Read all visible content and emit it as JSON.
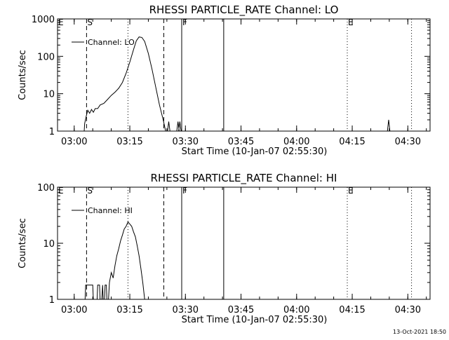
{
  "colors": {
    "background": "#ffffff",
    "foreground": "#000000"
  },
  "chart_data": [
    {
      "type": "line",
      "title": "RHESSI PARTICLE_RATE Channel: LO",
      "xlabel": "Start Time (10-Jan-07 02:55:30)",
      "ylabel": "Counts/sec",
      "y_scale": "log",
      "ylim": [
        1,
        1000
      ],
      "y_tick_labels": [
        "1",
        "10",
        "100",
        "1000"
      ],
      "y_tick_values": [
        1,
        10,
        100,
        1000
      ],
      "xlim": [
        "02:55:30",
        "04:36:00"
      ],
      "x_tick_labels": [
        "03:00",
        "03:15",
        "03:30",
        "03:45",
        "04:00",
        "04:15",
        "04:30"
      ],
      "legend": {
        "position": "top-left",
        "entries": [
          "Channel: LO"
        ]
      },
      "series": [
        {
          "name": "Channel: LO",
          "points": [
            [
              "03:02:30",
              0.5
            ],
            [
              "03:02:50",
              1.6
            ],
            [
              "03:03:15",
              2.5
            ],
            [
              "03:03:40",
              3.6
            ],
            [
              "03:04:10",
              3.0
            ],
            [
              "03:04:40",
              3.8
            ],
            [
              "03:05:10",
              3.2
            ],
            [
              "03:05:40",
              4.0
            ],
            [
              "03:06:20",
              4.0
            ],
            [
              "03:07:00",
              5.0
            ],
            [
              "03:08:00",
              5.5
            ],
            [
              "03:09:00",
              7.0
            ],
            [
              "03:10:00",
              9.0
            ],
            [
              "03:11:00",
              11.0
            ],
            [
              "03:12:00",
              14.0
            ],
            [
              "03:13:00",
              20.0
            ],
            [
              "03:14:00",
              35.0
            ],
            [
              "03:15:00",
              70.0
            ],
            [
              "03:16:00",
              150.0
            ],
            [
              "03:16:45",
              260.0
            ],
            [
              "03:17:30",
              330.0
            ],
            [
              "03:18:15",
              320.0
            ],
            [
              "03:19:00",
              250.0
            ],
            [
              "03:20:00",
              120.0
            ],
            [
              "03:21:00",
              45.0
            ],
            [
              "03:22:00",
              15.0
            ],
            [
              "03:23:00",
              5.0
            ],
            [
              "03:24:00",
              2.0
            ],
            [
              "03:24:40",
              1.0
            ],
            [
              "03:25:10",
              0.5
            ]
          ]
        }
      ],
      "spikes": [
        {
          "time": "03:25:30",
          "value": 1.8
        },
        {
          "time": "03:28:00",
          "value": 1.8
        },
        {
          "time": "03:28:30",
          "value": 1.8
        },
        {
          "time": "04:24:50",
          "value": 2.0
        }
      ],
      "markers": [
        {
          "label": "E",
          "time": "02:55:30",
          "style": "none"
        },
        {
          "label": "S",
          "time": "03:03:20",
          "style": "dashed"
        },
        {
          "label": "",
          "time": "03:14:30",
          "style": "dotted"
        },
        {
          "label": "",
          "time": "03:24:10",
          "style": "dashed"
        },
        {
          "label": "F",
          "time": "03:29:00",
          "style": "solid"
        },
        {
          "label": "",
          "time": "03:40:20",
          "style": "solid"
        },
        {
          "label": "E",
          "time": "04:13:40",
          "style": "dotted"
        },
        {
          "label": "",
          "time": "04:31:00",
          "style": "dotted"
        }
      ]
    },
    {
      "type": "line",
      "title": "RHESSI PARTICLE_RATE Channel: HI",
      "xlabel": "Start Time (10-Jan-07 02:55:30)",
      "ylabel": "Counts/sec",
      "y_scale": "log",
      "ylim": [
        1,
        100
      ],
      "y_tick_labels": [
        "1",
        "10",
        "100"
      ],
      "y_tick_values": [
        1,
        10,
        100
      ],
      "xlim": [
        "02:55:30",
        "04:36:00"
      ],
      "x_tick_labels": [
        "03:00",
        "03:15",
        "03:30",
        "03:45",
        "04:00",
        "04:15",
        "04:30"
      ],
      "legend": {
        "position": "top-left",
        "entries": [
          "Channel: HI"
        ]
      },
      "series": [
        {
          "name": "Channel: HI",
          "points": [
            [
              "03:02:45",
              0.5
            ],
            [
              "03:03:05",
              1.8
            ],
            [
              "03:04:00",
              1.8
            ],
            [
              "03:05:00",
              1.8
            ],
            [
              "03:05:20",
              0.5
            ],
            [
              "03:06:00",
              0.5
            ],
            [
              "03:06:20",
              1.8
            ],
            [
              "03:06:50",
              1.8
            ],
            [
              "03:07:10",
              0.5
            ],
            [
              "03:07:40",
              1.8
            ],
            [
              "03:08:00",
              0.5
            ],
            [
              "03:08:20",
              1.8
            ],
            [
              "03:08:40",
              1.8
            ],
            [
              "03:09:00",
              0.5
            ],
            [
              "03:09:30",
              2.0
            ],
            [
              "03:10:00",
              3.0
            ],
            [
              "03:10:30",
              2.4
            ],
            [
              "03:11:00",
              4.0
            ],
            [
              "03:11:30",
              6.0
            ],
            [
              "03:12:00",
              8.0
            ],
            [
              "03:12:30",
              11.0
            ],
            [
              "03:13:00",
              14.0
            ],
            [
              "03:13:30",
              18.0
            ],
            [
              "03:14:00",
              20.0
            ],
            [
              "03:14:30",
              24.0
            ],
            [
              "03:15:00",
              22.0
            ],
            [
              "03:15:30",
              20.0
            ],
            [
              "03:16:00",
              16.0
            ],
            [
              "03:16:30",
              13.0
            ],
            [
              "03:17:00",
              9.0
            ],
            [
              "03:17:30",
              6.0
            ],
            [
              "03:18:00",
              3.5
            ],
            [
              "03:18:30",
              2.0
            ],
            [
              "03:19:00",
              1.0
            ],
            [
              "03:19:20",
              0.5
            ]
          ]
        }
      ],
      "spikes": [],
      "markers": [
        {
          "label": "E",
          "time": "02:55:30",
          "style": "none"
        },
        {
          "label": "S",
          "time": "03:03:20",
          "style": "dashed"
        },
        {
          "label": "",
          "time": "03:14:30",
          "style": "dotted"
        },
        {
          "label": "",
          "time": "03:24:10",
          "style": "dashed"
        },
        {
          "label": "F",
          "time": "03:29:00",
          "style": "solid"
        },
        {
          "label": "",
          "time": "03:40:20",
          "style": "solid"
        },
        {
          "label": "E",
          "time": "04:13:40",
          "style": "dotted"
        },
        {
          "label": "",
          "time": "04:31:00",
          "style": "dotted"
        }
      ]
    }
  ],
  "footer": {
    "timestamp": "13-Oct-2021 18:50"
  }
}
